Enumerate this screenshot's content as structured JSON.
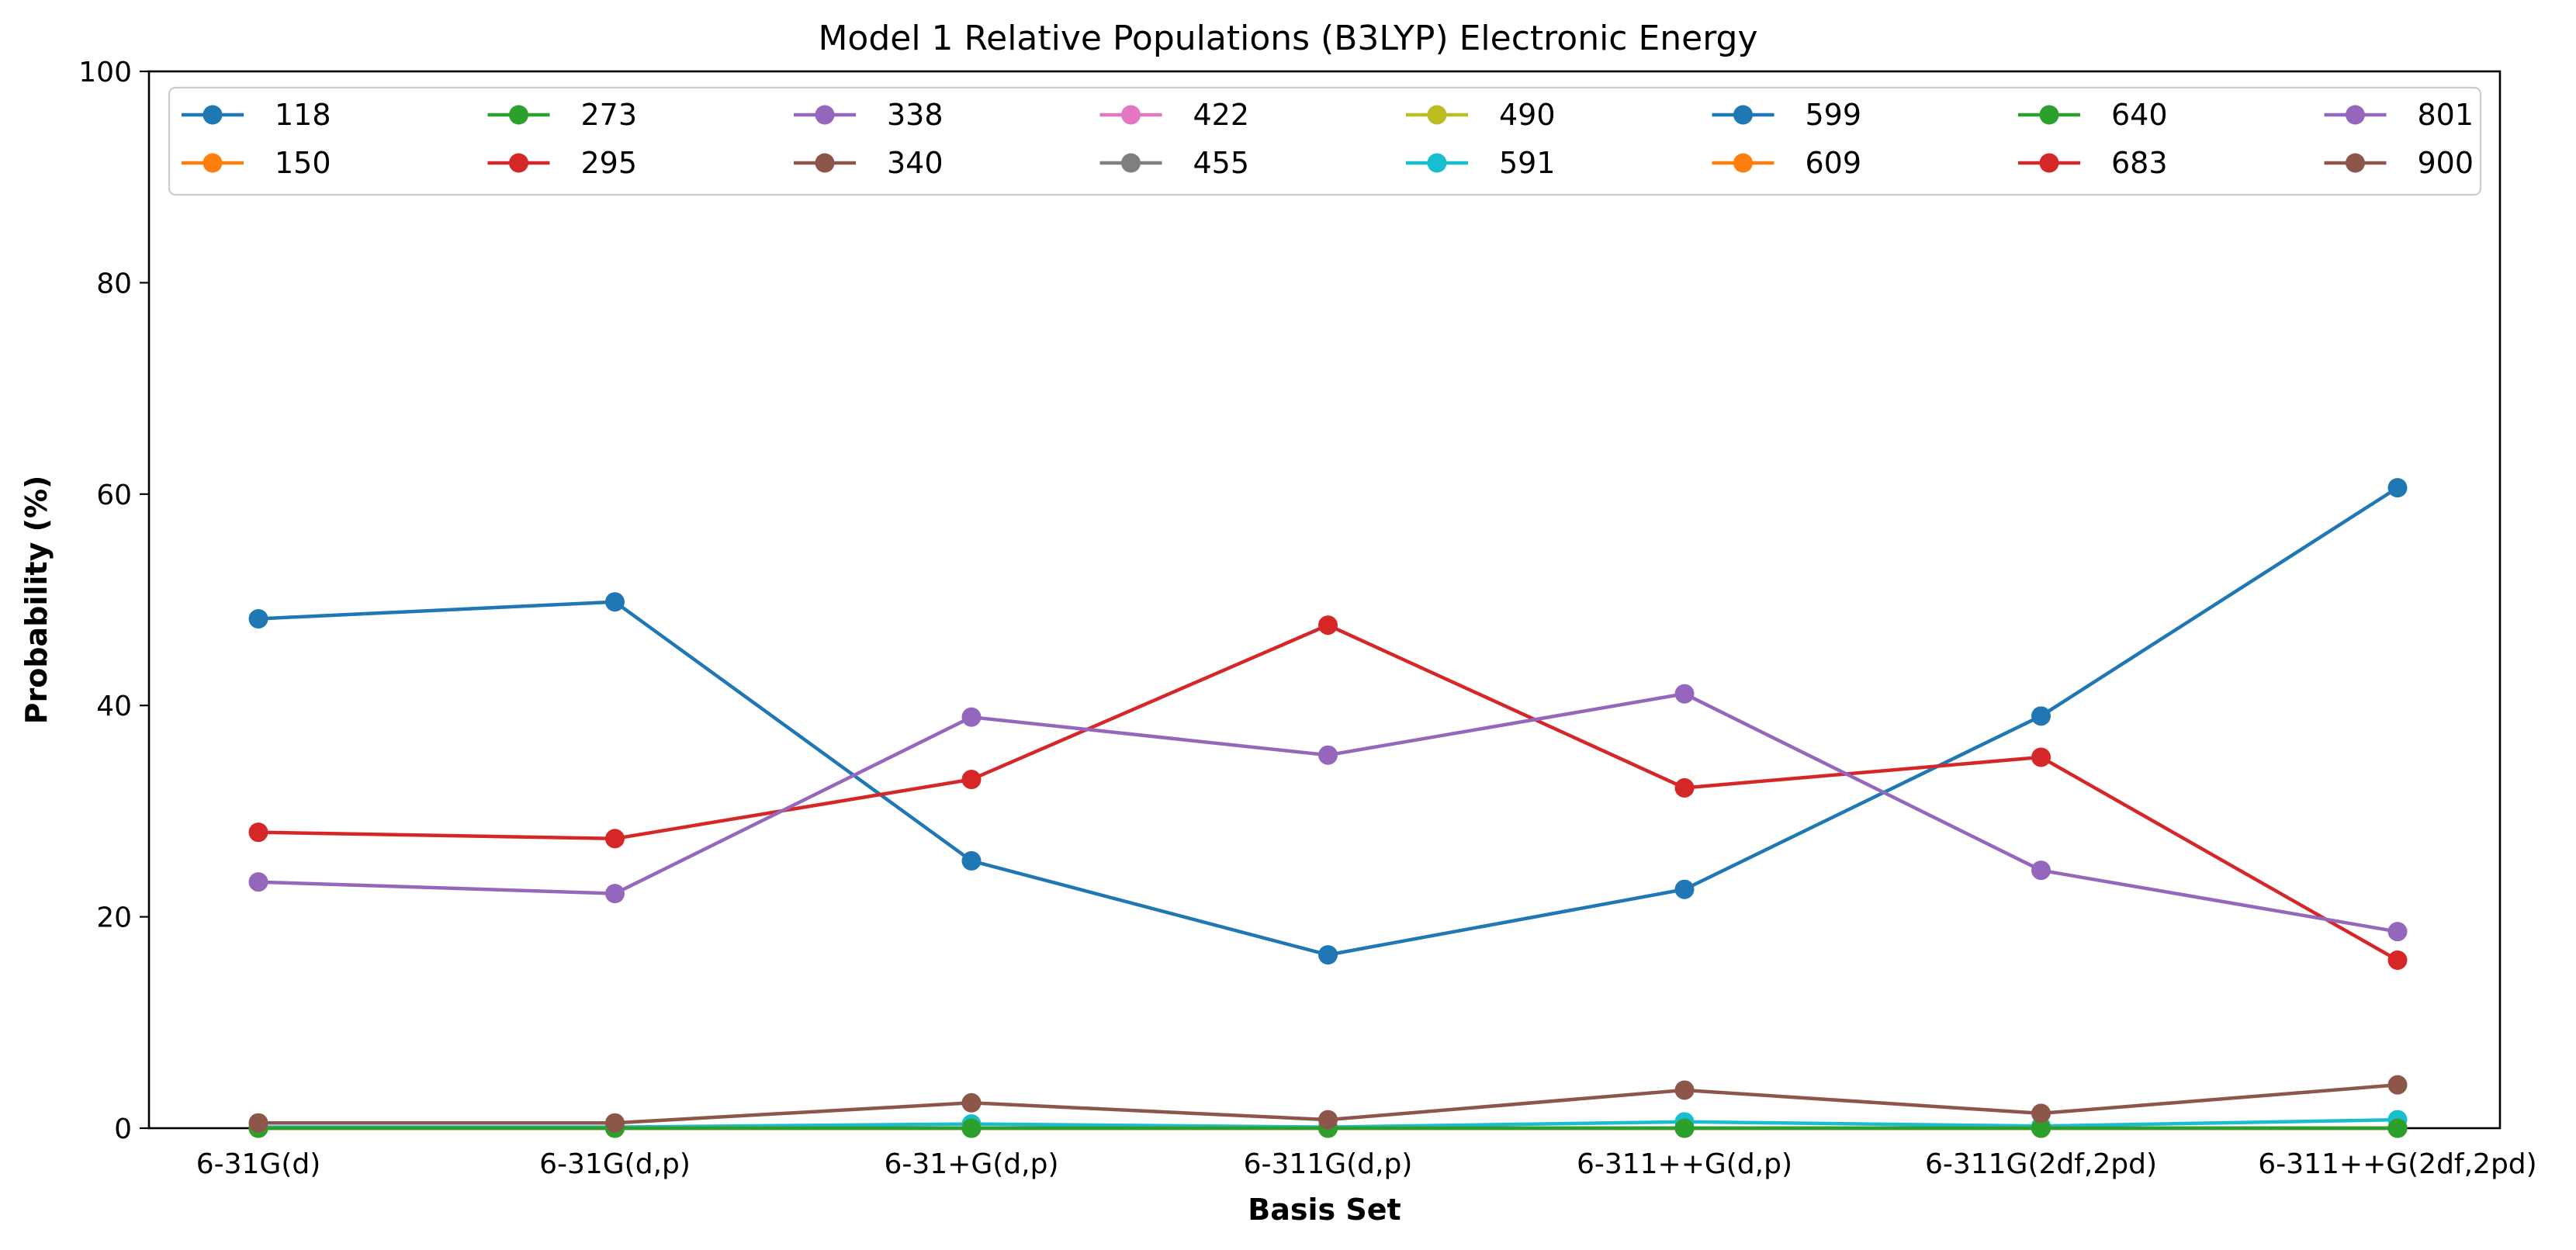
{
  "chart_data": {
    "type": "line",
    "title": "Model 1 Relative Populations (B3LYP) Electronic Energy",
    "xlabel": "Basis Set",
    "ylabel": "Probability (%)",
    "ylim": [
      0,
      100
    ],
    "yticks": [
      0,
      20,
      40,
      60,
      80,
      100
    ],
    "grid": false,
    "legend_position": "top",
    "legend_columns": 8,
    "categories": [
      "6-31G(d)",
      "6-31G(d,p)",
      "6-31+G(d,p)",
      "6-311G(d,p)",
      "6-311++G(d,p)",
      "6-311G(2df,2pd)",
      "6-311++G(2df,2pd)"
    ],
    "series": [
      {
        "name": "118",
        "color": "#1f77b4",
        "values": [
          0,
          0,
          0,
          0,
          0,
          0,
          0
        ]
      },
      {
        "name": "150",
        "color": "#ff7f0e",
        "values": [
          0,
          0,
          0,
          0,
          0,
          0,
          0
        ]
      },
      {
        "name": "273",
        "color": "#2ca02c",
        "values": [
          0,
          0,
          0,
          0,
          0,
          0,
          0
        ]
      },
      {
        "name": "295",
        "color": "#d62728",
        "values": [
          0,
          0,
          0,
          0,
          0,
          0,
          0
        ]
      },
      {
        "name": "338",
        "color": "#9467bd",
        "values": [
          0,
          0,
          0,
          0,
          0,
          0,
          0
        ]
      },
      {
        "name": "340",
        "color": "#8c564b",
        "values": [
          0,
          0,
          0,
          0,
          0,
          0,
          0
        ]
      },
      {
        "name": "422",
        "color": "#e377c2",
        "values": [
          0,
          0,
          0,
          0,
          0,
          0,
          0
        ]
      },
      {
        "name": "455",
        "color": "#7f7f7f",
        "values": [
          0,
          0,
          0,
          0,
          0,
          0,
          0
        ]
      },
      {
        "name": "490",
        "color": "#bcbd22",
        "values": [
          0,
          0,
          0,
          0,
          0,
          0,
          0
        ]
      },
      {
        "name": "591",
        "color": "#17becf",
        "values": [
          0.1,
          0.1,
          0.4,
          0.1,
          0.6,
          0.2,
          0.8
        ]
      },
      {
        "name": "599",
        "color": "#1f77b4",
        "values": [
          48.2,
          49.8,
          25.3,
          16.4,
          22.6,
          39.0,
          60.6
        ]
      },
      {
        "name": "609",
        "color": "#ff7f0e",
        "values": [
          0,
          0,
          0,
          0,
          0,
          0,
          0
        ]
      },
      {
        "name": "640",
        "color": "#2ca02c",
        "values": [
          0,
          0,
          0,
          0,
          0,
          0,
          0
        ]
      },
      {
        "name": "683",
        "color": "#d62728",
        "values": [
          28.0,
          27.4,
          33.0,
          47.6,
          32.2,
          35.1,
          15.9
        ]
      },
      {
        "name": "801",
        "color": "#9467bd",
        "values": [
          23.3,
          22.2,
          38.9,
          35.3,
          41.1,
          24.4,
          18.6
        ]
      },
      {
        "name": "900",
        "color": "#8c564b",
        "values": [
          0.5,
          0.5,
          2.4,
          0.8,
          3.6,
          1.4,
          4.1
        ]
      }
    ]
  }
}
